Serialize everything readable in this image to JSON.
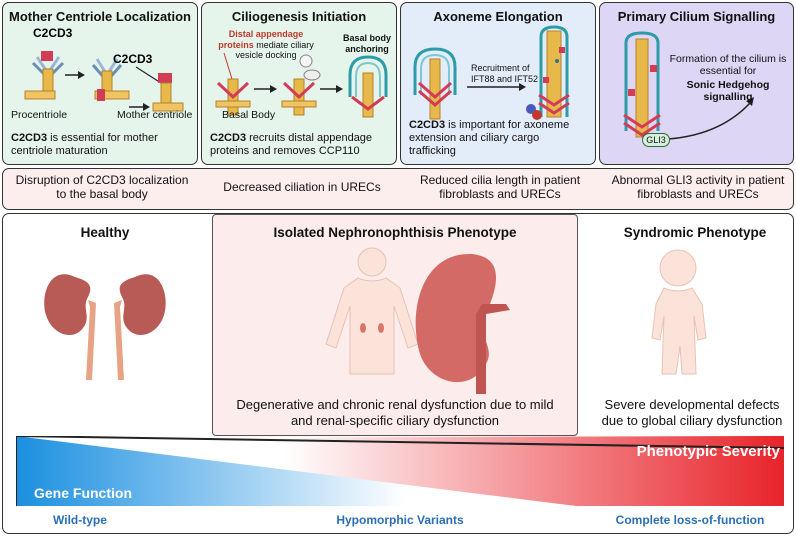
{
  "panels": [
    {
      "title": "Mother Centriole Localization",
      "labels": {
        "c2cd3_a": "C2CD3",
        "c2cd3_b": "C2CD3",
        "procentriole": "Procentriole",
        "mother_centriole": "Mother centriole"
      },
      "caption_bold": "C2CD3",
      "caption_rest": " is essential for mother centriole maturation",
      "bg": "#e6f5ec"
    },
    {
      "title": "Ciliogenesis Initiation",
      "labels": {
        "distal_bold": "Distal appendage proteins",
        "distal_rest": " mediate ciliary vesicle docking",
        "basal_anchoring": "Basal body anchoring",
        "basal_body": "Basal Body"
      },
      "caption_bold": "C2CD3",
      "caption_rest": " recruits distal appendage proteins and removes CCP110",
      "bg": "#e6f5ec"
    },
    {
      "title": "Axoneme Elongation",
      "labels": {
        "recruitment": "Recruitment of IFT88 and IFT52"
      },
      "caption_bold": "C2CD3",
      "caption_rest": " is important for axoneme extension and ciliary cargo trafficking",
      "bg": "#e3edfa"
    },
    {
      "title": "Primary Cilium Signalling",
      "labels": {
        "formation": "Formation of the cilium is essential for",
        "sonic": "Sonic Hedgehog signalling",
        "gli3": "GLI3"
      },
      "bg": "#ddd6f5"
    }
  ],
  "defects": [
    "Disruption of C2CD3 localization to the basal body",
    "Decreased ciliation in URECs",
    "Reduced cilia length in patient fibroblasts and URECs",
    "Abnormal GLI3 activity in patient fibroblasts and URECs"
  ],
  "phenotypes": {
    "healthy": {
      "title": "Healthy"
    },
    "isolated": {
      "title": "Isolated Nephronophthisis Phenotype",
      "description": "Degenerative and chronic renal dysfunction due to mild and renal-specific ciliary dysfunction"
    },
    "syndromic": {
      "title": "Syndromic Phenotype",
      "description": "Severe developmental defects due to global ciliary dysfunction"
    }
  },
  "gradient": {
    "gene_function": "Gene Function",
    "severity": "Phenotypic Severity",
    "variants": [
      "Wild-type",
      "Hypomorphic Variants",
      "Complete loss-of-function"
    ],
    "colors": {
      "blue": "#1a8fe0",
      "red": "#e8232a",
      "label_blue": "#2a6fb5"
    }
  }
}
